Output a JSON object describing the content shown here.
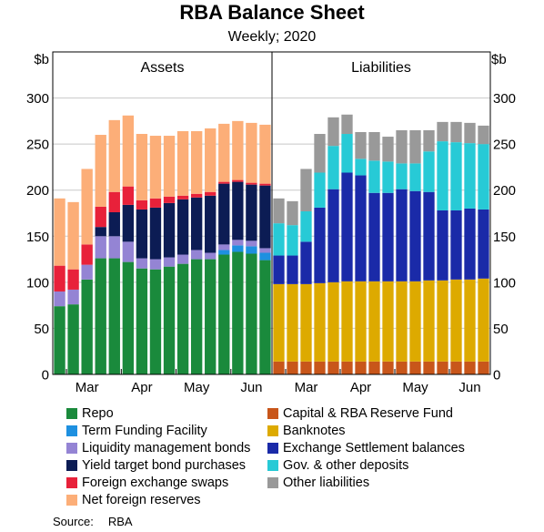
{
  "title": "RBA Balance Sheet",
  "subtitle": "Weekly; 2020",
  "source": {
    "label": "Source:",
    "value": "RBA"
  },
  "chart_data": {
    "type": "bar",
    "stacked": true,
    "unit_left": "$b",
    "unit_right": "$b",
    "ylim": [
      0,
      350
    ],
    "yticks": [
      0,
      50,
      100,
      150,
      200,
      250,
      300
    ],
    "grid": true,
    "legend_placement": "bottom",
    "x_month_labels": [
      "Mar",
      "Apr",
      "May",
      "Jun"
    ],
    "x_month_label_weeks": [
      2.5,
      6.5,
      10.5,
      14.5
    ],
    "panels": [
      {
        "title": "Assets",
        "series": [
          {
            "name": "Repo",
            "color": "#1a8a3c",
            "values": [
              74,
              76,
              103,
              126,
              126,
              122,
              115,
              114,
              117,
              120,
              125,
              125,
              130,
              133,
              131,
              124
            ]
          },
          {
            "name": "Term Funding Facility",
            "color": "#1e90e0",
            "values": [
              0,
              0,
              0,
              0,
              0,
              0,
              0,
              0,
              0,
              0,
              0,
              0,
              5,
              7,
              8,
              8
            ]
          },
          {
            "name": "Liquidity management bonds",
            "color": "#9484d4",
            "values": [
              16,
              16,
              16,
              24,
              24,
              22,
              11,
              11,
              10,
              10,
              10,
              7,
              6,
              6,
              6,
              5
            ]
          },
          {
            "name": "Yield target bond purchases",
            "color": "#0c1c54",
            "values": [
              0,
              0,
              0,
              10,
              26,
              40,
              53,
              56,
              59,
              60,
              57,
              62,
              66,
              63,
              61,
              68
            ]
          },
          {
            "name": "Foreign exchange swaps",
            "color": "#e8213a",
            "values": [
              28,
              22,
              22,
              22,
              22,
              20,
              10,
              10,
              7,
              4,
              4,
              4,
              2,
              2,
              2,
              2
            ]
          },
          {
            "name": "Net foreign reserves",
            "color": "#fcae78",
            "values": [
              73,
              73,
              82,
              78,
              78,
              77,
              72,
              68,
              66,
              70,
              68,
              69,
              63,
              64,
              65,
              64
            ]
          }
        ]
      },
      {
        "title": "Liabilities",
        "series": [
          {
            "name": "Capital & RBA Reserve Fund",
            "color": "#c8561a",
            "values": [
              14,
              14,
              14,
              14,
              14,
              14,
              14,
              14,
              14,
              14,
              14,
              14,
              14,
              14,
              14,
              14
            ]
          },
          {
            "name": "Banknotes",
            "color": "#ddaa00",
            "values": [
              84,
              84,
              84,
              85,
              86,
              87,
              87,
              87,
              87,
              87,
              87,
              88,
              88,
              89,
              89,
              90
            ]
          },
          {
            "name": "Exchange Settlement balances",
            "color": "#1a2aa8",
            "values": [
              31,
              31,
              46,
              82,
              101,
              118,
              115,
              96,
              96,
              100,
              98,
              96,
              76,
              75,
              77,
              75
            ]
          },
          {
            "name": "Gov. & other deposits",
            "color": "#27cad6",
            "values": [
              35,
              33,
              33,
              38,
              47,
              42,
              18,
              35,
              34,
              28,
              30,
              44,
              75,
              74,
              71,
              71
            ]
          },
          {
            "name": "Other liabilities",
            "color": "#999999",
            "values": [
              27,
              26,
              46,
              42,
              31,
              21,
              29,
              31,
              27,
              36,
              36,
              23,
              21,
              22,
              22,
              20
            ]
          }
        ]
      }
    ]
  },
  "legend": {
    "left": [
      {
        "name": "Repo",
        "color": "#1a8a3c"
      },
      {
        "name": "Term Funding Facility",
        "color": "#1e90e0"
      },
      {
        "name": "Liquidity management bonds",
        "color": "#9484d4"
      },
      {
        "name": "Yield target bond purchases",
        "color": "#0c1c54"
      },
      {
        "name": "Foreign exchange swaps",
        "color": "#e8213a"
      },
      {
        "name": "Net foreign reserves",
        "color": "#fcae78"
      }
    ],
    "right": [
      {
        "name": "Capital & RBA Reserve Fund",
        "color": "#c8561a"
      },
      {
        "name": "Banknotes",
        "color": "#ddaa00"
      },
      {
        "name": "Exchange Settlement balances",
        "color": "#1a2aa8"
      },
      {
        "name": "Gov. & other deposits",
        "color": "#27cad6"
      },
      {
        "name": "Other liabilities",
        "color": "#999999"
      }
    ]
  }
}
